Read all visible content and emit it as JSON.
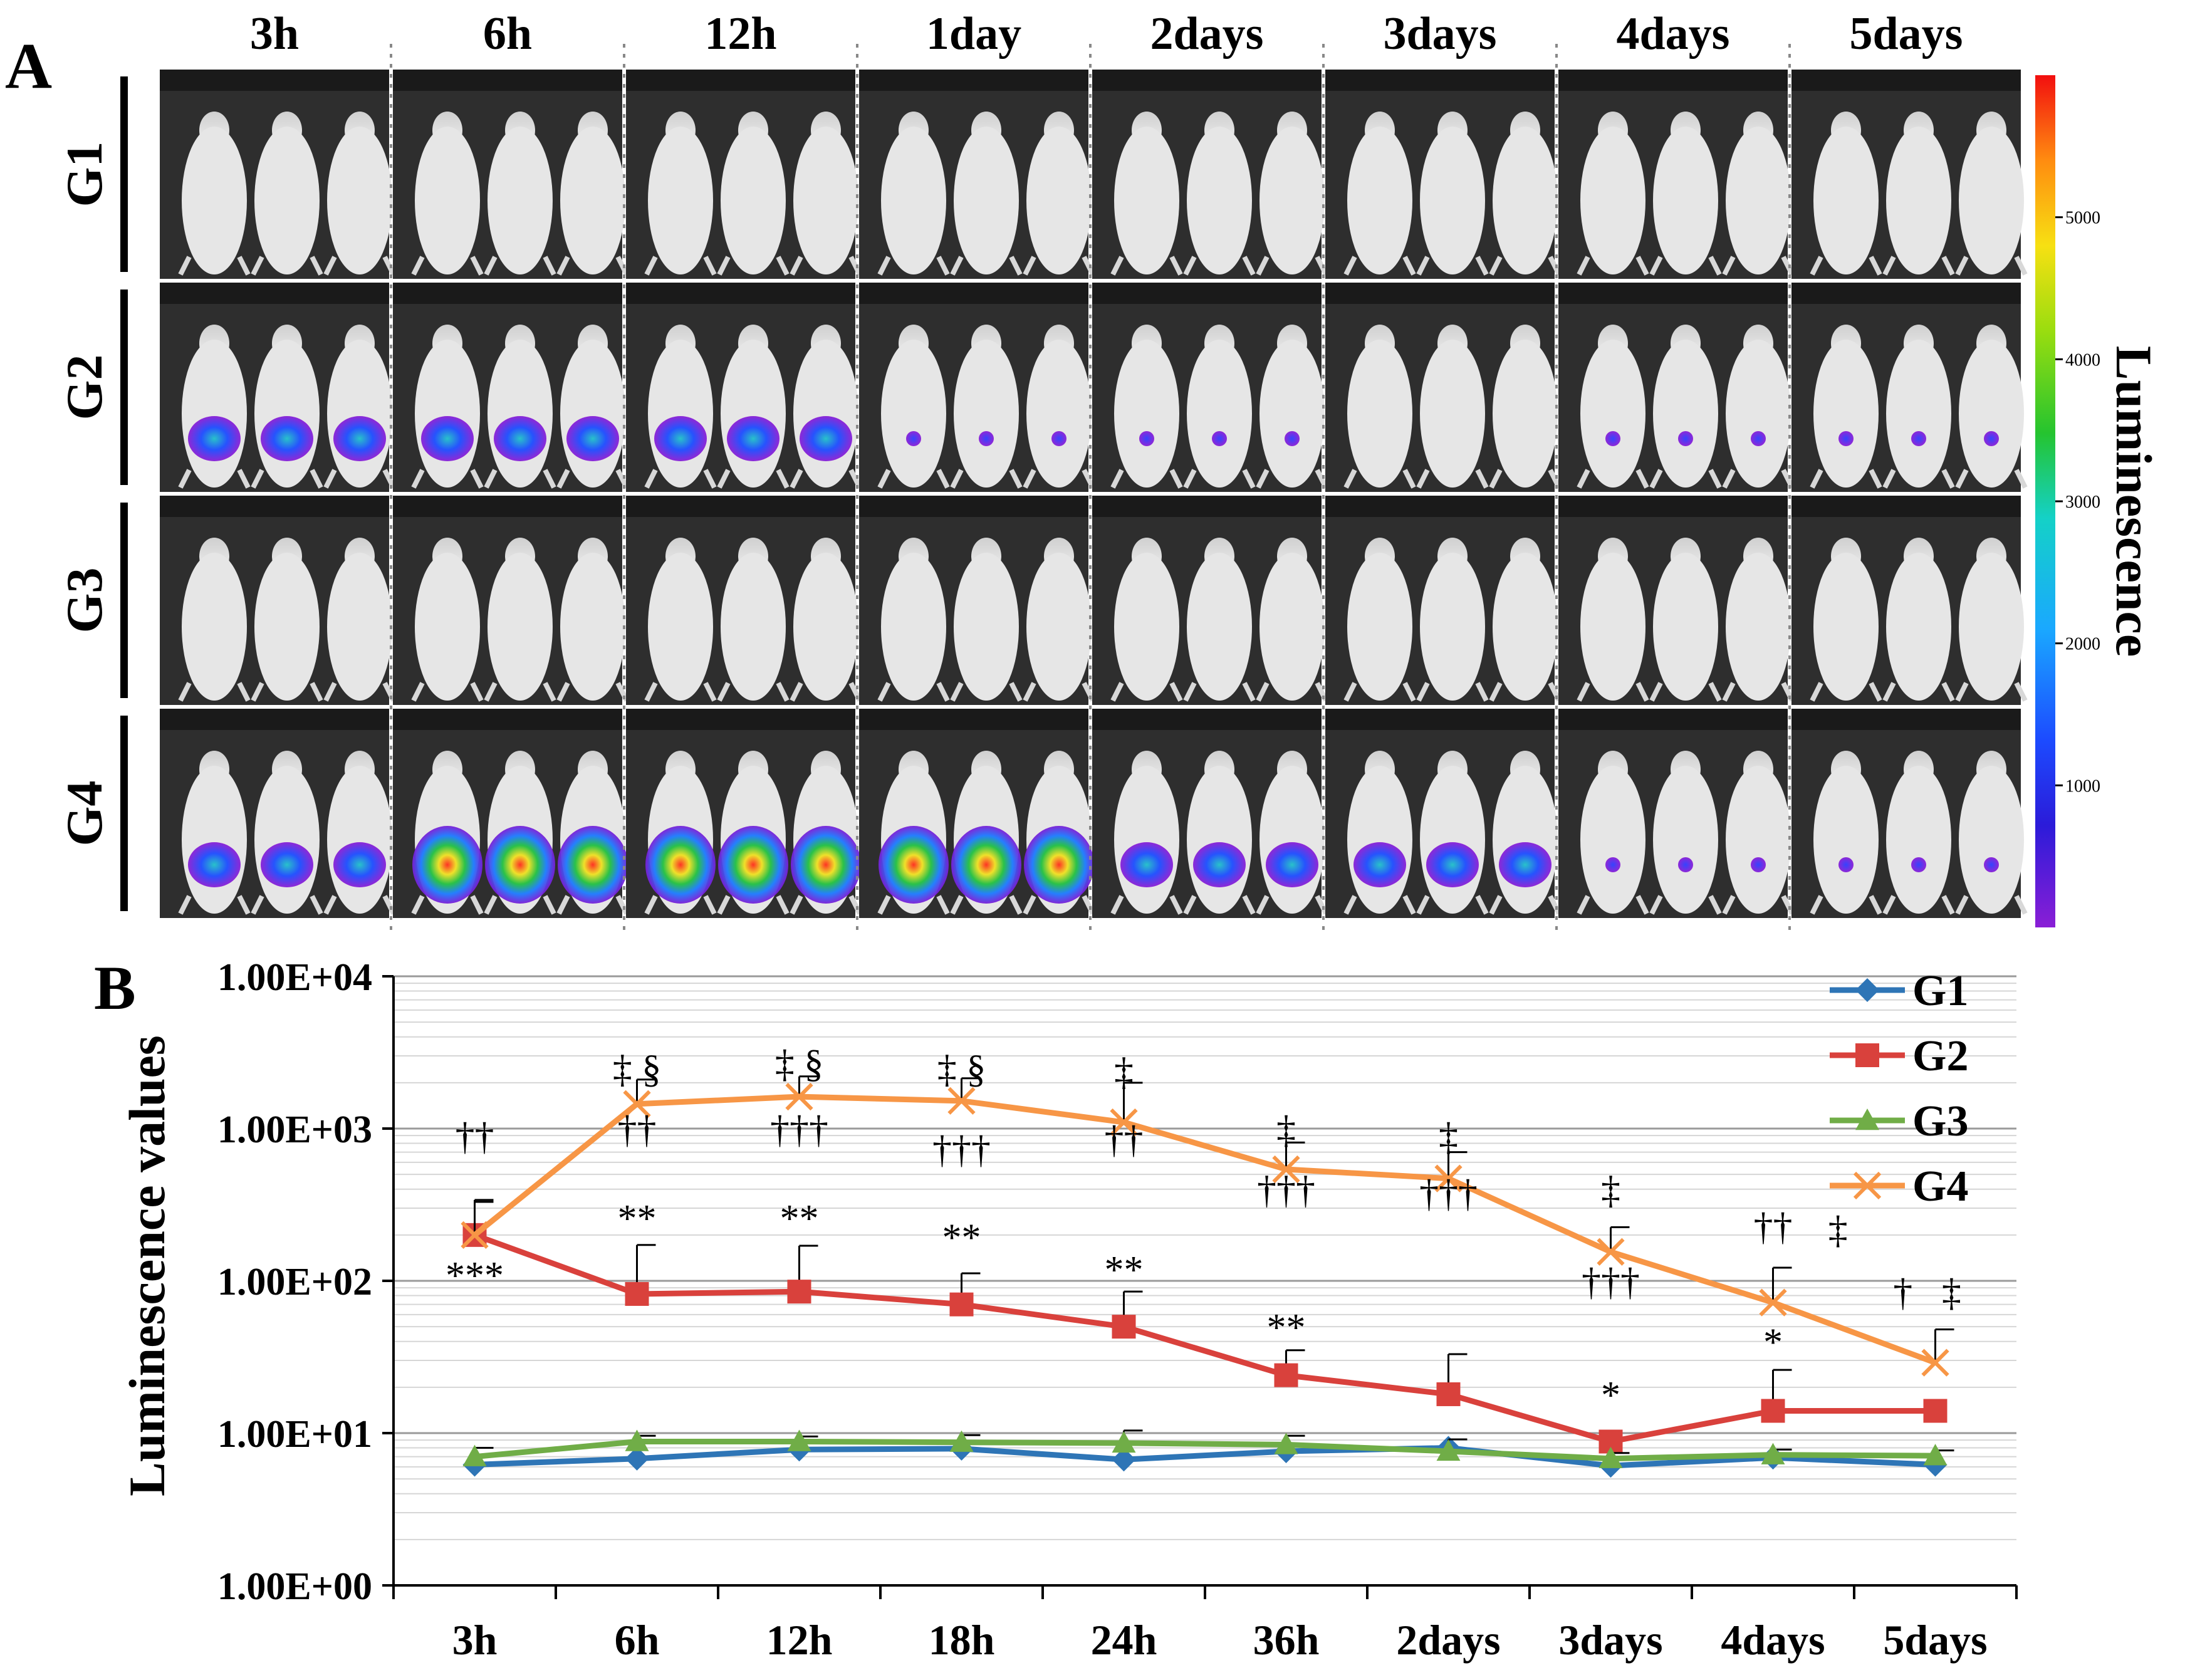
{
  "panel_a": {
    "label": "A",
    "timepoints": [
      "3h",
      "6h",
      "12h",
      "1day",
      "2days",
      "3days",
      "4days",
      "5days"
    ],
    "groups": [
      "G1",
      "G2",
      "G3",
      "G4"
    ],
    "colorbar": {
      "title": "Luminescence",
      "ticks": [
        "5000",
        "4000",
        "3000",
        "2000",
        "1000"
      ],
      "tick_values": [
        5000,
        4000,
        3000,
        2000,
        1000
      ],
      "range": [
        0,
        6000
      ]
    },
    "signal": [
      [
        0,
        0,
        0,
        0,
        0,
        0,
        0,
        0
      ],
      [
        3,
        2,
        2,
        1.5,
        1,
        0,
        1,
        1
      ],
      [
        0,
        0,
        0,
        0,
        0,
        0,
        0,
        0
      ],
      [
        2,
        4,
        4,
        4,
        2.5,
        2,
        1,
        1
      ]
    ]
  },
  "chart_data": {
    "type": "line",
    "label": "B",
    "title": "",
    "xlabel": "",
    "ylabel": "Luminescence values",
    "yscale": "log",
    "ylim": [
      1,
      10000
    ],
    "ytick_labels": [
      "1.00E+04",
      "1.00E+03",
      "1.00E+02",
      "1.00E+01",
      "1.00E+00"
    ],
    "ytick_values": [
      10000,
      1000,
      100,
      10,
      1
    ],
    "categories": [
      "3h",
      "6h",
      "12h",
      "18h",
      "24h",
      "36h",
      "2days",
      "3days",
      "4days",
      "5days"
    ],
    "legend_position": "top-right",
    "series": [
      {
        "name": "G1",
        "color": "#2e75b6",
        "marker": "diamond",
        "values": [
          6.2,
          6.8,
          7.8,
          7.9,
          6.7,
          7.6,
          8.0,
          6.1,
          6.9,
          6.2
        ],
        "errors": [
          0,
          0,
          0,
          0,
          0,
          0,
          0,
          0,
          0,
          0
        ]
      },
      {
        "name": "G2",
        "color": "#d9413c",
        "marker": "square",
        "values": [
          200,
          82,
          85,
          70,
          50,
          24,
          18,
          8.8,
          14,
          14
        ],
        "errors": [
          130,
          90,
          85,
          42,
          35,
          11,
          15,
          0,
          12,
          0
        ]
      },
      {
        "name": "G3",
        "color": "#70ad47",
        "marker": "triangle",
        "values": [
          7.0,
          8.8,
          8.8,
          8.7,
          8.6,
          8.4,
          7.6,
          6.8,
          7.2,
          7.1
        ],
        "errors": [
          1.0,
          0.8,
          0.7,
          1.0,
          1.8,
          1.2,
          1.5,
          0.6,
          0.6,
          0.6
        ]
      },
      {
        "name": "G4",
        "color": "#f79646",
        "marker": "x",
        "values": [
          200,
          1450,
          1620,
          1520,
          1100,
          540,
          470,
          155,
          72,
          29
        ],
        "errors": [
          140,
          650,
          580,
          620,
          900,
          270,
          230,
          70,
          50,
          19
        ]
      }
    ],
    "annotations": [
      {
        "text": "††",
        "cat": 0,
        "value": 900
      },
      {
        "text": "***",
        "cat": 0,
        "value": 110
      },
      {
        "text": "‡ §",
        "cat": 1,
        "value": 2500
      },
      {
        "text": "††",
        "cat": 1,
        "value": 1000
      },
      {
        "text": "**",
        "cat": 1,
        "value": 260
      },
      {
        "text": "‡ §",
        "cat": 2,
        "value": 2700
      },
      {
        "text": "†††",
        "cat": 2,
        "value": 1000
      },
      {
        "text": "**",
        "cat": 2,
        "value": 260
      },
      {
        "text": "‡ §",
        "cat": 3,
        "value": 2500
      },
      {
        "text": "†††",
        "cat": 3,
        "value": 740
      },
      {
        "text": "**",
        "cat": 3,
        "value": 195
      },
      {
        "text": "‡",
        "cat": 4,
        "value": 2400
      },
      {
        "text": "††",
        "cat": 4,
        "value": 860
      },
      {
        "text": "**",
        "cat": 4,
        "value": 120
      },
      {
        "text": "‡",
        "cat": 5,
        "value": 1000
      },
      {
        "text": "†††",
        "cat": 5,
        "value": 400
      },
      {
        "text": "**",
        "cat": 5,
        "value": 50
      },
      {
        "text": "‡",
        "cat": 6,
        "value": 900
      },
      {
        "text": "†††",
        "cat": 6,
        "value": 380
      },
      {
        "text": "‡",
        "cat": 7,
        "value": 400
      },
      {
        "text": "†††",
        "cat": 7,
        "value": 100
      },
      {
        "text": "*",
        "cat": 7,
        "value": 18
      },
      {
        "text": "††",
        "cat": 8,
        "value": 230
      },
      {
        "text": "*",
        "cat": 8,
        "value": 40
      },
      {
        "text": "‡",
        "cat": 8.4,
        "value": 220
      },
      {
        "text": "†",
        "cat": 8.8,
        "value": 85
      },
      {
        "text": "‡",
        "cat": 9.1,
        "value": 85
      }
    ]
  }
}
